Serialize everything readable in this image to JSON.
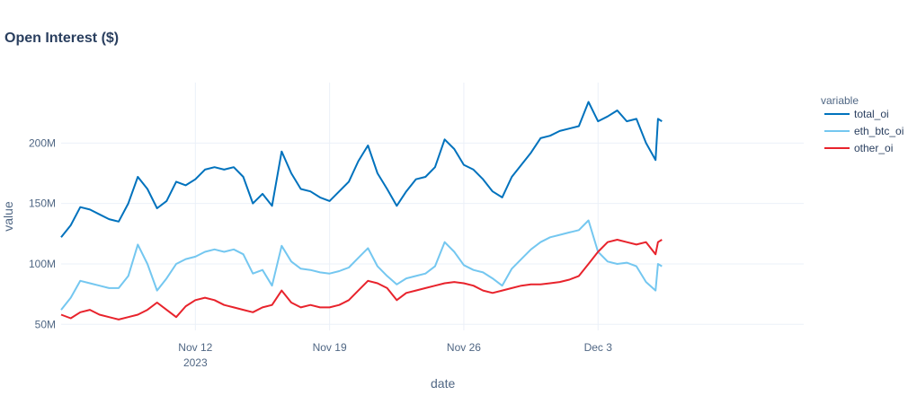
{
  "chart_data": {
    "type": "line",
    "title": "Open Interest ($)",
    "xlabel": "date",
    "ylabel": "value",
    "legend_title": "variable",
    "legend_position": "right",
    "grid": true,
    "x_range": [
      "2023-11-05",
      "2023-12-09"
    ],
    "ylim": [
      45,
      250
    ],
    "yticks": [
      {
        "value": 50,
        "label": "50M"
      },
      {
        "value": 100,
        "label": "100M"
      },
      {
        "value": 150,
        "label": "150M"
      },
      {
        "value": 200,
        "label": "200M"
      }
    ],
    "xticks": [
      {
        "date": "2023-11-12",
        "label": "Nov 12",
        "sublabel": "2023"
      },
      {
        "date": "2023-11-19",
        "label": "Nov 19",
        "sublabel": ""
      },
      {
        "date": "2023-11-26",
        "label": "Nov 26",
        "sublabel": ""
      },
      {
        "date": "2023-12-03",
        "label": "Dec 3",
        "sublabel": ""
      }
    ],
    "series": [
      {
        "name": "total_oi",
        "color": "#0072bd",
        "points": [
          [
            "2023-11-05",
            122
          ],
          [
            "2023-11-05T12:00",
            132
          ],
          [
            "2023-11-06",
            147
          ],
          [
            "2023-11-06T12:00",
            145
          ],
          [
            "2023-11-07",
            141
          ],
          [
            "2023-11-07T12:00",
            137
          ],
          [
            "2023-11-08",
            135
          ],
          [
            "2023-11-08T12:00",
            150
          ],
          [
            "2023-11-09",
            172
          ],
          [
            "2023-11-09T12:00",
            162
          ],
          [
            "2023-11-10",
            146
          ],
          [
            "2023-11-10T12:00",
            152
          ],
          [
            "2023-11-11",
            168
          ],
          [
            "2023-11-11T12:00",
            165
          ],
          [
            "2023-11-12",
            170
          ],
          [
            "2023-11-12T12:00",
            178
          ],
          [
            "2023-11-13",
            180
          ],
          [
            "2023-11-13T12:00",
            178
          ],
          [
            "2023-11-14",
            180
          ],
          [
            "2023-11-14T12:00",
            172
          ],
          [
            "2023-11-15",
            150
          ],
          [
            "2023-11-15T12:00",
            158
          ],
          [
            "2023-11-16",
            148
          ],
          [
            "2023-11-16T12:00",
            193
          ],
          [
            "2023-11-17",
            175
          ],
          [
            "2023-11-17T12:00",
            162
          ],
          [
            "2023-11-18",
            160
          ],
          [
            "2023-11-18T12:00",
            155
          ],
          [
            "2023-11-19",
            152
          ],
          [
            "2023-11-19T12:00",
            160
          ],
          [
            "2023-11-20",
            168
          ],
          [
            "2023-11-20T12:00",
            185
          ],
          [
            "2023-11-21",
            198
          ],
          [
            "2023-11-21T12:00",
            175
          ],
          [
            "2023-11-22",
            162
          ],
          [
            "2023-11-22T12:00",
            148
          ],
          [
            "2023-11-23",
            160
          ],
          [
            "2023-11-23T12:00",
            170
          ],
          [
            "2023-11-24",
            172
          ],
          [
            "2023-11-24T12:00",
            180
          ],
          [
            "2023-11-25",
            203
          ],
          [
            "2023-11-25T12:00",
            195
          ],
          [
            "2023-11-26",
            182
          ],
          [
            "2023-11-26T12:00",
            178
          ],
          [
            "2023-11-27",
            170
          ],
          [
            "2023-11-27T12:00",
            160
          ],
          [
            "2023-11-28",
            155
          ],
          [
            "2023-11-28T12:00",
            172
          ],
          [
            "2023-11-29",
            182
          ],
          [
            "2023-11-29T12:00",
            192
          ],
          [
            "2023-11-30",
            204
          ],
          [
            "2023-11-30T12:00",
            206
          ],
          [
            "2023-12-01",
            210
          ],
          [
            "2023-12-01T12:00",
            212
          ],
          [
            "2023-12-02",
            214
          ],
          [
            "2023-12-02T12:00",
            234
          ],
          [
            "2023-12-03",
            218
          ],
          [
            "2023-12-03T12:00",
            222
          ],
          [
            "2023-12-04",
            227
          ],
          [
            "2023-12-04T12:00",
            218
          ],
          [
            "2023-12-05",
            220
          ],
          [
            "2023-12-05T12:00",
            200
          ],
          [
            "2023-12-06",
            186
          ],
          [
            "2023-12-06T03:00",
            220
          ],
          [
            "2023-12-06T08:00",
            218
          ]
        ]
      },
      {
        "name": "eth_btc_oi",
        "color": "#74c7f0",
        "points": [
          [
            "2023-11-05",
            62
          ],
          [
            "2023-11-05T12:00",
            72
          ],
          [
            "2023-11-06",
            86
          ],
          [
            "2023-11-06T12:00",
            84
          ],
          [
            "2023-11-07",
            82
          ],
          [
            "2023-11-07T12:00",
            80
          ],
          [
            "2023-11-08",
            80
          ],
          [
            "2023-11-08T12:00",
            90
          ],
          [
            "2023-11-09",
            116
          ],
          [
            "2023-11-09T12:00",
            100
          ],
          [
            "2023-11-10",
            78
          ],
          [
            "2023-11-10T12:00",
            88
          ],
          [
            "2023-11-11",
            100
          ],
          [
            "2023-11-11T12:00",
            104
          ],
          [
            "2023-11-12",
            106
          ],
          [
            "2023-11-12T12:00",
            110
          ],
          [
            "2023-11-13",
            112
          ],
          [
            "2023-11-13T12:00",
            110
          ],
          [
            "2023-11-14",
            112
          ],
          [
            "2023-11-14T12:00",
            108
          ],
          [
            "2023-11-15",
            92
          ],
          [
            "2023-11-15T12:00",
            95
          ],
          [
            "2023-11-16",
            82
          ],
          [
            "2023-11-16T12:00",
            115
          ],
          [
            "2023-11-17",
            102
          ],
          [
            "2023-11-17T12:00",
            96
          ],
          [
            "2023-11-18",
            95
          ],
          [
            "2023-11-18T12:00",
            93
          ],
          [
            "2023-11-19",
            92
          ],
          [
            "2023-11-19T12:00",
            94
          ],
          [
            "2023-11-20",
            97
          ],
          [
            "2023-11-20T12:00",
            105
          ],
          [
            "2023-11-21",
            113
          ],
          [
            "2023-11-21T12:00",
            98
          ],
          [
            "2023-11-22",
            90
          ],
          [
            "2023-11-22T12:00",
            83
          ],
          [
            "2023-11-23",
            88
          ],
          [
            "2023-11-23T12:00",
            90
          ],
          [
            "2023-11-24",
            92
          ],
          [
            "2023-11-24T12:00",
            98
          ],
          [
            "2023-11-25",
            118
          ],
          [
            "2023-11-25T12:00",
            110
          ],
          [
            "2023-11-26",
            99
          ],
          [
            "2023-11-26T12:00",
            95
          ],
          [
            "2023-11-27",
            93
          ],
          [
            "2023-11-27T12:00",
            88
          ],
          [
            "2023-11-28",
            82
          ],
          [
            "2023-11-28T12:00",
            96
          ],
          [
            "2023-11-29",
            104
          ],
          [
            "2023-11-29T12:00",
            112
          ],
          [
            "2023-11-30",
            118
          ],
          [
            "2023-11-30T12:00",
            122
          ],
          [
            "2023-12-01",
            124
          ],
          [
            "2023-12-01T12:00",
            126
          ],
          [
            "2023-12-02",
            128
          ],
          [
            "2023-12-02T12:00",
            136
          ],
          [
            "2023-12-03",
            110
          ],
          [
            "2023-12-03T12:00",
            102
          ],
          [
            "2023-12-04",
            100
          ],
          [
            "2023-12-04T12:00",
            101
          ],
          [
            "2023-12-05",
            98
          ],
          [
            "2023-12-05T12:00",
            85
          ],
          [
            "2023-12-06",
            78
          ],
          [
            "2023-12-06T03:00",
            100
          ],
          [
            "2023-12-06T08:00",
            98
          ]
        ]
      },
      {
        "name": "other_oi",
        "color": "#e8232c",
        "points": [
          [
            "2023-11-05",
            58
          ],
          [
            "2023-11-05T12:00",
            55
          ],
          [
            "2023-11-06",
            60
          ],
          [
            "2023-11-06T12:00",
            62
          ],
          [
            "2023-11-07",
            58
          ],
          [
            "2023-11-07T12:00",
            56
          ],
          [
            "2023-11-08",
            54
          ],
          [
            "2023-11-08T12:00",
            56
          ],
          [
            "2023-11-09",
            58
          ],
          [
            "2023-11-09T12:00",
            62
          ],
          [
            "2023-11-10",
            68
          ],
          [
            "2023-11-10T12:00",
            62
          ],
          [
            "2023-11-11",
            56
          ],
          [
            "2023-11-11T12:00",
            65
          ],
          [
            "2023-11-12",
            70
          ],
          [
            "2023-11-12T12:00",
            72
          ],
          [
            "2023-11-13",
            70
          ],
          [
            "2023-11-13T12:00",
            66
          ],
          [
            "2023-11-14",
            64
          ],
          [
            "2023-11-14T12:00",
            62
          ],
          [
            "2023-11-15",
            60
          ],
          [
            "2023-11-15T12:00",
            64
          ],
          [
            "2023-11-16",
            66
          ],
          [
            "2023-11-16T12:00",
            78
          ],
          [
            "2023-11-17",
            68
          ],
          [
            "2023-11-17T12:00",
            64
          ],
          [
            "2023-11-18",
            66
          ],
          [
            "2023-11-18T12:00",
            64
          ],
          [
            "2023-11-19",
            64
          ],
          [
            "2023-11-19T12:00",
            66
          ],
          [
            "2023-11-20",
            70
          ],
          [
            "2023-11-20T12:00",
            78
          ],
          [
            "2023-11-21",
            86
          ],
          [
            "2023-11-21T12:00",
            84
          ],
          [
            "2023-11-22",
            80
          ],
          [
            "2023-11-22T12:00",
            70
          ],
          [
            "2023-11-23",
            76
          ],
          [
            "2023-11-23T12:00",
            78
          ],
          [
            "2023-11-24",
            80
          ],
          [
            "2023-11-24T12:00",
            82
          ],
          [
            "2023-11-25",
            84
          ],
          [
            "2023-11-25T12:00",
            85
          ],
          [
            "2023-11-26",
            84
          ],
          [
            "2023-11-26T12:00",
            82
          ],
          [
            "2023-11-27",
            78
          ],
          [
            "2023-11-27T12:00",
            76
          ],
          [
            "2023-11-28",
            78
          ],
          [
            "2023-11-28T12:00",
            80
          ],
          [
            "2023-11-29",
            82
          ],
          [
            "2023-11-29T12:00",
            83
          ],
          [
            "2023-11-30",
            83
          ],
          [
            "2023-11-30T12:00",
            84
          ],
          [
            "2023-12-01",
            85
          ],
          [
            "2023-12-01T12:00",
            87
          ],
          [
            "2023-12-02",
            90
          ],
          [
            "2023-12-02T12:00",
            100
          ],
          [
            "2023-12-03",
            110
          ],
          [
            "2023-12-03T12:00",
            118
          ],
          [
            "2023-12-04",
            120
          ],
          [
            "2023-12-04T12:00",
            118
          ],
          [
            "2023-12-05",
            116
          ],
          [
            "2023-12-05T12:00",
            118
          ],
          [
            "2023-12-06",
            108
          ],
          [
            "2023-12-06T03:00",
            118
          ],
          [
            "2023-12-06T08:00",
            120
          ]
        ]
      }
    ]
  }
}
